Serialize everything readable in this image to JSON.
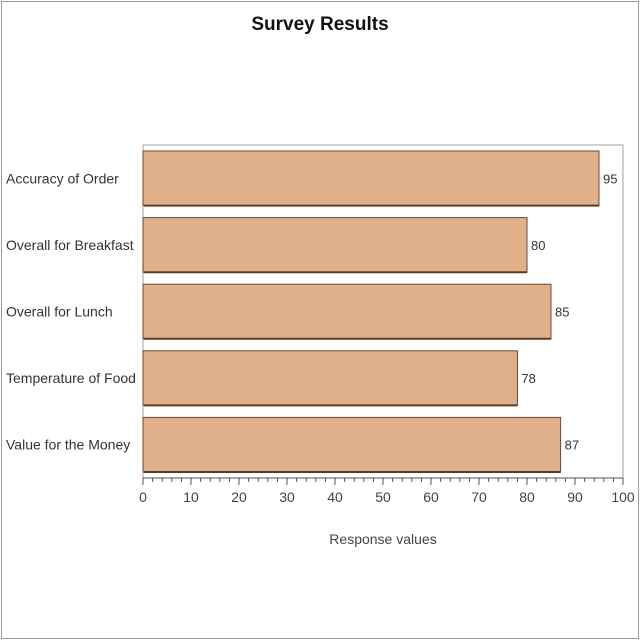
{
  "chart_data": {
    "type": "bar",
    "orientation": "horizontal",
    "title": "Survey Results",
    "xlabel": "Response values",
    "ylabel": "",
    "categories": [
      "Accuracy of Order",
      "Overall for Breakfast",
      "Overall for Lunch",
      "Temperature of Food",
      "Value for the Money"
    ],
    "values": [
      95,
      80,
      85,
      78,
      87
    ],
    "xlim": [
      0,
      100
    ],
    "major_ticks": [
      0,
      10,
      20,
      30,
      40,
      50,
      60,
      70,
      80,
      90,
      100
    ],
    "minor_tick_step": 2,
    "grid": false,
    "legend": "none",
    "bar_color": "#dfb08a",
    "bar_edge_color": "#6b4a33"
  }
}
